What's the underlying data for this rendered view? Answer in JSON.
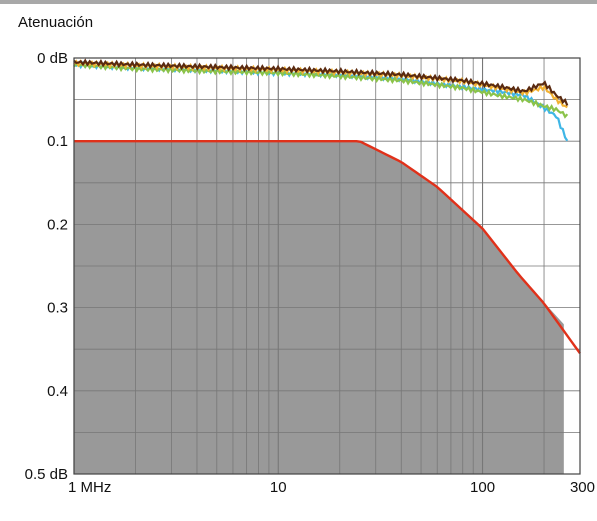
{
  "chart_data": {
    "type": "line",
    "title": "",
    "ylabel": "Atenuación",
    "xlabel": "",
    "x_scale": "log",
    "xlim": [
      1,
      300
    ],
    "ylim": [
      0,
      0.5
    ],
    "y_inverted": true,
    "grid": true,
    "x_ticks": [
      {
        "value": 1,
        "label": "1 MHz"
      },
      {
        "value": 10,
        "label": "10"
      },
      {
        "value": 100,
        "label": "100"
      },
      {
        "value": 300,
        "label": "300"
      }
    ],
    "y_ticks": [
      {
        "value": 0,
        "label": "0 dB"
      },
      {
        "value": 0.1,
        "label": "0.1"
      },
      {
        "value": 0.2,
        "label": "0.2"
      },
      {
        "value": 0.3,
        "label": "0.3"
      },
      {
        "value": 0.4,
        "label": "0.4"
      },
      {
        "value": 0.5,
        "label": "0.5 dB"
      }
    ],
    "shaded_region": {
      "color": "#999999",
      "x": [
        1,
        25,
        40,
        60,
        100,
        150,
        250
      ],
      "y_top": [
        0.1,
        0.1,
        0.125,
        0.155,
        0.205,
        0.26,
        0.32
      ],
      "x_end": 250
    },
    "limit_line": {
      "color": "#e0311a",
      "x": [
        1,
        25,
        40,
        60,
        100,
        150,
        200,
        300
      ],
      "y": [
        0.1,
        0.1,
        0.125,
        0.155,
        0.205,
        0.26,
        0.295,
        0.355
      ]
    },
    "series": [
      {
        "color": "#3fb6e6",
        "x": [
          1,
          2,
          5,
          10,
          20,
          40,
          80,
          120,
          160,
          200,
          230,
          260
        ],
        "y": [
          0.008,
          0.012,
          0.015,
          0.018,
          0.02,
          0.025,
          0.035,
          0.04,
          0.045,
          0.06,
          0.07,
          0.1
        ]
      },
      {
        "color": "#8bc34a",
        "x": [
          1,
          2,
          5,
          10,
          20,
          40,
          80,
          120,
          160,
          200,
          230,
          260
        ],
        "y": [
          0.008,
          0.013,
          0.016,
          0.018,
          0.022,
          0.027,
          0.036,
          0.045,
          0.05,
          0.058,
          0.062,
          0.07
        ]
      },
      {
        "color": "#f2b233",
        "x": [
          1,
          2,
          5,
          10,
          20,
          40,
          80,
          120,
          160,
          200,
          230,
          260
        ],
        "y": [
          0.006,
          0.009,
          0.012,
          0.014,
          0.017,
          0.021,
          0.028,
          0.036,
          0.042,
          0.035,
          0.05,
          0.06
        ]
      },
      {
        "color": "#5a2a10",
        "x": [
          1,
          2,
          5,
          10,
          20,
          40,
          80,
          120,
          160,
          200,
          230,
          260
        ],
        "y": [
          0.005,
          0.008,
          0.011,
          0.013,
          0.016,
          0.02,
          0.027,
          0.034,
          0.04,
          0.03,
          0.045,
          0.055
        ]
      }
    ]
  }
}
